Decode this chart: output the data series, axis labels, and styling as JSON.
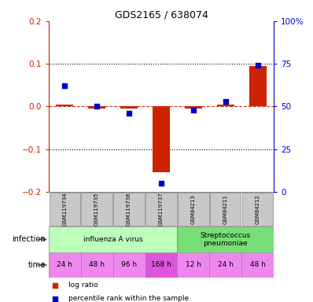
{
  "title": "GDS2165 / 638074",
  "samples": [
    "GSM119734",
    "GSM119735",
    "GSM119736",
    "GSM119737",
    "GSM84213",
    "GSM84211",
    "GSM84212"
  ],
  "log_ratio": [
    0.005,
    -0.005,
    -0.005,
    -0.155,
    -0.005,
    0.005,
    0.095
  ],
  "percentile_rank_raw": [
    62,
    50,
    46,
    5,
    48,
    53,
    74
  ],
  "log_ratio_color": "#cc2200",
  "percentile_color": "#0000cc",
  "ylim_left": [
    -0.2,
    0.2
  ],
  "ylim_right": [
    0,
    100
  ],
  "yticks_left": [
    -0.2,
    -0.1,
    0.0,
    0.1,
    0.2
  ],
  "yticks_right": [
    0,
    25,
    50,
    75,
    100
  ],
  "ytick_labels_right": [
    "0",
    "25",
    "50",
    "75",
    "100%"
  ],
  "zero_line_color": "#cc2200",
  "dotted_line_color": "#000000",
  "infection_groups": [
    {
      "label": "influenza A virus",
      "start": 0,
      "end": 3,
      "color": "#bbffbb"
    },
    {
      "label": "Streptococcus\npneumoniae",
      "start": 4,
      "end": 6,
      "color": "#77dd77"
    }
  ],
  "time_labels": [
    "24 h",
    "48 h",
    "96 h",
    "168 h",
    "12 h",
    "24 h",
    "48 h"
  ],
  "time_color_light": "#ee88ee",
  "time_color_dark": "#dd55dd",
  "time_dark_indices": [
    3
  ],
  "bg_color": "#ffffff",
  "sample_box_color": "#c8c8c8",
  "legend_items": [
    {
      "label": "log ratio",
      "color": "#cc2200"
    },
    {
      "label": "percentile rank within the sample",
      "color": "#0000cc"
    }
  ]
}
